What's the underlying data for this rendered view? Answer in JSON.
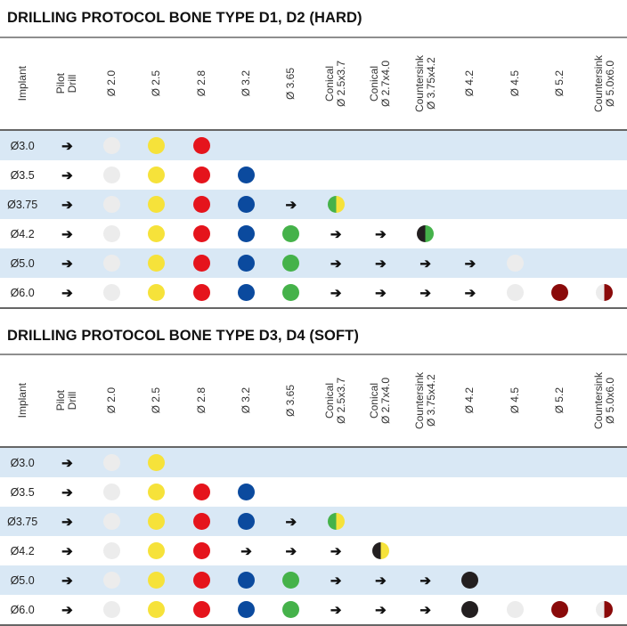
{
  "colors": {
    "w": "#ececec",
    "y": "#f6e23a",
    "r": "#e5141c",
    "b": "#0b4a9e",
    "g": "#45b24a",
    "k": "#231f20",
    "m": "#8a0a0a",
    "row_alt": "#d9e8f5"
  },
  "cell_legend": {
    ">": "arrow-right-icon",
    "w": "white-drill-dot",
    "y": "yellow-drill-dot",
    "r": "red-drill-dot",
    "b": "blue-drill-dot",
    "g": "green-drill-dot",
    "k": "black-drill-dot",
    "m": "maroon-drill-dot",
    "gy": "green-yellow-half-dot",
    "kg": "black-green-half-dot",
    "ky": "black-yellow-half-dot",
    "wm": "white-maroon-half-dot"
  },
  "headers": [
    "Implant",
    "Pilot\nDrill",
    "Ø 2.0",
    "Ø 2.5",
    "Ø 2.8",
    "Ø 3.2",
    "Ø 3.65",
    "Conical\nØ 2.5x3.7",
    "Conical\nØ 2.7x4.0",
    "Countersink\nØ 3.75x4.2",
    "Ø 4.2",
    "Ø 4.5",
    "Ø 5.2",
    "Countersink\nØ 5.0x6.0"
  ],
  "tables": [
    {
      "title": "DRILLING PROTOCOL BONE TYPE D1, D2 (HARD)",
      "rows": [
        {
          "implant": "Ø3.0",
          "cells": [
            ">",
            "w",
            "y",
            "r"
          ]
        },
        {
          "implant": "Ø3.5",
          "cells": [
            ">",
            "w",
            "y",
            "r",
            "b"
          ]
        },
        {
          "implant": "Ø3.75",
          "cells": [
            ">",
            "w",
            "y",
            "r",
            "b",
            ">",
            "gy"
          ]
        },
        {
          "implant": "Ø4.2",
          "cells": [
            ">",
            "w",
            "y",
            "r",
            "b",
            "g",
            ">",
            ">",
            "kg"
          ]
        },
        {
          "implant": "Ø5.0",
          "cells": [
            ">",
            "w",
            "y",
            "r",
            "b",
            "g",
            ">",
            ">",
            ">",
            ">",
            "w"
          ]
        },
        {
          "implant": "Ø6.0",
          "cells": [
            ">",
            "w",
            "y",
            "r",
            "b",
            "g",
            ">",
            ">",
            ">",
            ">",
            "w",
            "m",
            "wm"
          ]
        }
      ]
    },
    {
      "title": "DRILLING PROTOCOL BONE TYPE D3, D4 (SOFT)",
      "rows": [
        {
          "implant": "Ø3.0",
          "cells": [
            ">",
            "w",
            "y"
          ]
        },
        {
          "implant": "Ø3.5",
          "cells": [
            ">",
            "w",
            "y",
            "r",
            "b"
          ]
        },
        {
          "implant": "Ø3.75",
          "cells": [
            ">",
            "w",
            "y",
            "r",
            "b",
            ">",
            "gy"
          ]
        },
        {
          "implant": "Ø4.2",
          "cells": [
            ">",
            "w",
            "y",
            "r",
            ">",
            ">",
            ">",
            "ky"
          ]
        },
        {
          "implant": "Ø5.0",
          "cells": [
            ">",
            "w",
            "y",
            "r",
            "b",
            "g",
            ">",
            ">",
            ">",
            "k"
          ]
        },
        {
          "implant": "Ø6.0",
          "cells": [
            ">",
            "w",
            "y",
            "r",
            "b",
            "g",
            ">",
            ">",
            ">",
            "k",
            "w",
            "m",
            "wm"
          ]
        }
      ]
    }
  ]
}
